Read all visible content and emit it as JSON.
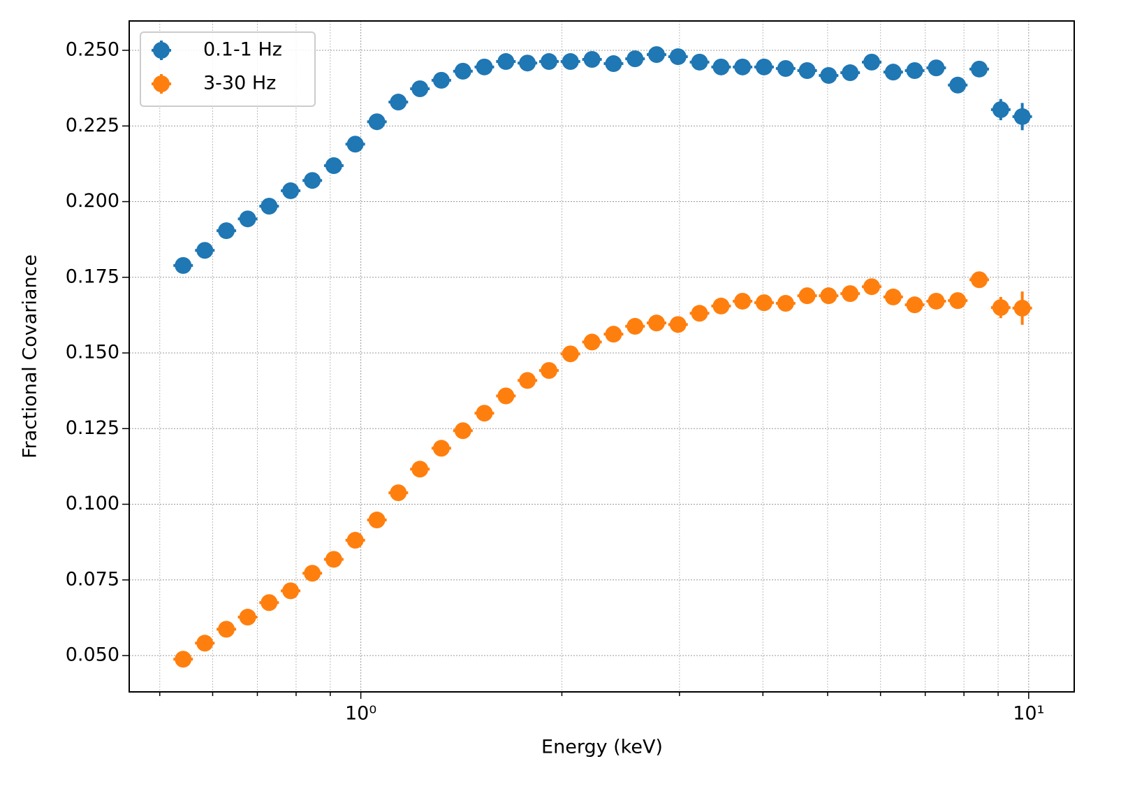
{
  "chart_data": {
    "type": "scatter",
    "xlabel": "Energy (keV)",
    "ylabel": "Fractional Covariance",
    "xscale": "log",
    "xlim": [
      0.45,
      11.7
    ],
    "ylim": [
      0.038,
      0.2597
    ],
    "xticks": [
      {
        "value": 1,
        "label": "10⁰"
      },
      {
        "value": 10,
        "label": "10¹"
      }
    ],
    "xminor_ticks": [
      0.5,
      0.6,
      0.7,
      0.8,
      0.9,
      2,
      3,
      4,
      5,
      6,
      7,
      8,
      9
    ],
    "yticks": [
      {
        "value": 0.05,
        "label": "0.050"
      },
      {
        "value": 0.075,
        "label": "0.075"
      },
      {
        "value": 0.1,
        "label": "0.100"
      },
      {
        "value": 0.125,
        "label": "0.125"
      },
      {
        "value": 0.15,
        "label": "0.150"
      },
      {
        "value": 0.175,
        "label": "0.175"
      },
      {
        "value": 0.2,
        "label": "0.200"
      },
      {
        "value": 0.225,
        "label": "0.225"
      },
      {
        "value": 0.25,
        "label": "0.250"
      }
    ],
    "grid": true,
    "legend": "upper left",
    "x": [
      0.542,
      0.584,
      0.629,
      0.677,
      0.729,
      0.785,
      0.846,
      0.911,
      0.981,
      1.057,
      1.138,
      1.226,
      1.32,
      1.422,
      1.531,
      1.649,
      1.776,
      1.913,
      2.06,
      2.219,
      2.39,
      2.574,
      2.772,
      2.985,
      3.215,
      3.463,
      3.729,
      4.016,
      4.326,
      4.659,
      5.017,
      5.404,
      5.82,
      6.268,
      6.75,
      7.27,
      7.83,
      8.433,
      9.082,
      9.781
    ],
    "series": [
      {
        "name": "0.1-1 Hz",
        "color": "#1f77b4",
        "values": [
          0.1789,
          0.1839,
          0.1904,
          0.1943,
          0.1985,
          0.2036,
          0.207,
          0.2119,
          0.219,
          0.2264,
          0.2329,
          0.2373,
          0.2401,
          0.2431,
          0.2445,
          0.2463,
          0.2458,
          0.2463,
          0.2463,
          0.247,
          0.2456,
          0.2472,
          0.2486,
          0.2479,
          0.2461,
          0.2445,
          0.2445,
          0.2445,
          0.244,
          0.2433,
          0.2417,
          0.2426,
          0.2461,
          0.2428,
          0.2433,
          0.2442,
          0.2385,
          0.2438,
          0.2304,
          0.2281
        ],
        "errors": [
          0.001,
          0.001,
          0.001,
          0.001,
          0.001,
          0.001,
          0.001,
          0.001,
          0.001,
          0.001,
          0.001,
          0.001,
          0.001,
          0.001,
          0.001,
          0.001,
          0.001,
          0.001,
          0.001,
          0.001,
          0.001,
          0.001,
          0.001,
          0.001,
          0.001,
          0.001,
          0.001,
          0.001,
          0.001,
          0.001,
          0.001,
          0.001,
          0.0015,
          0.0015,
          0.0015,
          0.0015,
          0.0015,
          0.0025,
          0.0035,
          0.0045
        ]
      },
      {
        "name": "3-30 Hz",
        "color": "#ff7f0e",
        "values": [
          0.0488,
          0.0541,
          0.0587,
          0.0627,
          0.0675,
          0.0714,
          0.0772,
          0.0818,
          0.0881,
          0.0948,
          0.1038,
          0.1116,
          0.1185,
          0.1243,
          0.1301,
          0.1358,
          0.1409,
          0.1442,
          0.1497,
          0.1536,
          0.1562,
          0.1588,
          0.1599,
          0.1594,
          0.1631,
          0.1655,
          0.1671,
          0.1666,
          0.1664,
          0.1689,
          0.1689,
          0.1696,
          0.1719,
          0.1685,
          0.1659,
          0.1671,
          0.1673,
          0.1742,
          0.165,
          0.1648
        ],
        "errors": [
          0.001,
          0.001,
          0.001,
          0.001,
          0.001,
          0.001,
          0.001,
          0.001,
          0.001,
          0.001,
          0.001,
          0.001,
          0.001,
          0.001,
          0.001,
          0.001,
          0.001,
          0.001,
          0.001,
          0.001,
          0.001,
          0.001,
          0.001,
          0.001,
          0.001,
          0.001,
          0.001,
          0.001,
          0.001,
          0.001,
          0.001,
          0.001,
          0.0015,
          0.0015,
          0.0015,
          0.0015,
          0.0015,
          0.0025,
          0.0035,
          0.0055
        ]
      }
    ]
  }
}
